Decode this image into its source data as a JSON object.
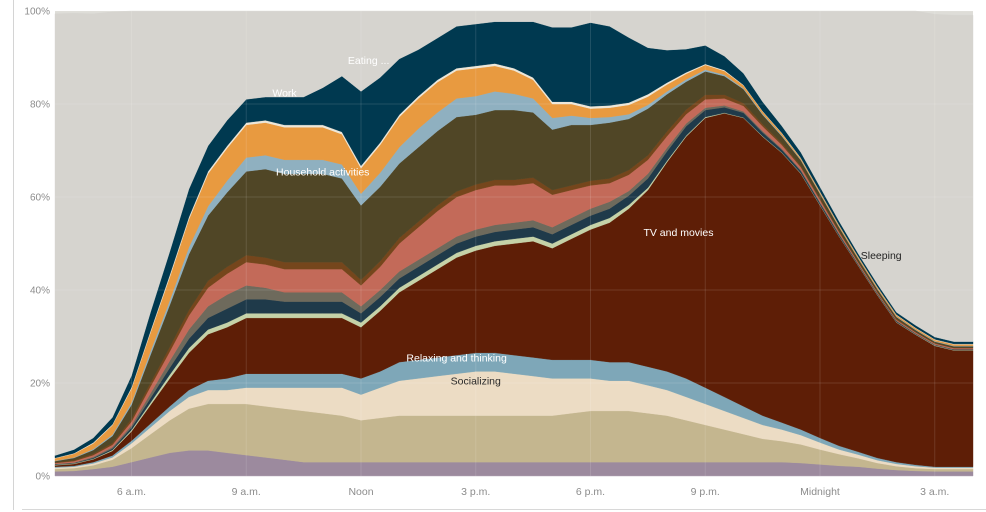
{
  "chart_data": {
    "type": "area",
    "stacked": true,
    "normalized": true,
    "y_ticks": [
      "0%",
      "20%",
      "40%",
      "60%",
      "80%",
      "100%"
    ],
    "ylim": [
      0,
      100
    ],
    "x_ticks": [
      "6 a.m.",
      "9 a.m.",
      "Noon",
      "3 p.m.",
      "6 p.m.",
      "9 p.m.",
      "Midnight",
      "3 a.m."
    ],
    "x": [
      4,
      4.5,
      5,
      5.5,
      6,
      6.5,
      7,
      7.5,
      8,
      8.5,
      9,
      9.5,
      10,
      10.5,
      11,
      11.5,
      12,
      12.5,
      13,
      13.5,
      14,
      14.5,
      15,
      15.5,
      16,
      16.5,
      17,
      17.5,
      18,
      18.5,
      19,
      19.5,
      20,
      20.5,
      21,
      21.5,
      22,
      22.5,
      23,
      23.5,
      24,
      24.5,
      25,
      25.5,
      26,
      26.5,
      27,
      27.5,
      28
    ],
    "grid": true,
    "colors": [
      "#9c8a9e",
      "#c4b68f",
      "#ecdcc4",
      "#7ea7b8",
      "#5e1e06",
      "#c5d2a8",
      "#1f3a4a",
      "#6e6a5c",
      "#c36a59",
      "#75461c",
      "#504626",
      "#8fb0c0",
      "#e89a40",
      "#ede7d9",
      "#003950",
      "#d6d4cf"
    ],
    "series": [
      {
        "name": "",
        "values": [
          1.0,
          1.1,
          1.5,
          2,
          3,
          4,
          5,
          5.5,
          5.5,
          5,
          4.5,
          4,
          3.5,
          3,
          3,
          3,
          3,
          3,
          3,
          3,
          3,
          3,
          3,
          3,
          3,
          3,
          3,
          3,
          3,
          3,
          3,
          3,
          3,
          3,
          3,
          3,
          3,
          3,
          3,
          2.8,
          2.5,
          2.2,
          2,
          1.6,
          1.3,
          1.1,
          1.0,
          1.0,
          1.0
        ]
      },
      {
        "name": "",
        "values": [
          0.5,
          0.6,
          0.8,
          1.5,
          3,
          5,
          7,
          9,
          10,
          10.5,
          11,
          11,
          11,
          11,
          10.5,
          10,
          9,
          9.5,
          10,
          10,
          10,
          10,
          10,
          10,
          10,
          10,
          10,
          10.5,
          11,
          11,
          11,
          10.5,
          10,
          9,
          8,
          7,
          6,
          5,
          4.5,
          4,
          3.2,
          2.5,
          1.8,
          1.2,
          0.8,
          0.6,
          0.5,
          0.5,
          0.5
        ]
      },
      {
        "name": "Socializing",
        "values": [
          0.3,
          0.3,
          0.4,
          0.5,
          1,
          1.5,
          2,
          2.5,
          3,
          3,
          3.5,
          4,
          4.5,
          5,
          5.5,
          6,
          5.5,
          6.5,
          7.5,
          8,
          8.5,
          9,
          9.5,
          9.5,
          9,
          8.5,
          8,
          7.5,
          7,
          6.5,
          6.5,
          6,
          5.5,
          5,
          4.5,
          4,
          3.5,
          3,
          2.5,
          2,
          1.5,
          1,
          0.8,
          0.6,
          0.5,
          0.4,
          0.3,
          0.3,
          0.3
        ]
      },
      {
        "name": "Relaxing and thinking",
        "values": [
          0.2,
          0.2,
          0.3,
          0.4,
          0.6,
          0.8,
          1,
          1.5,
          2,
          2.5,
          3,
          3,
          3,
          3,
          3,
          3,
          3.5,
          3.5,
          4,
          4,
          4,
          4,
          4,
          4,
          4,
          4,
          4,
          4,
          4,
          4,
          4,
          4,
          4,
          4,
          3.5,
          3,
          2.5,
          2,
          1.5,
          1.2,
          1,
          0.8,
          0.6,
          0.5,
          0.4,
          0.3,
          0.2,
          0.2,
          0.2
        ]
      },
      {
        "name": "TV and movies",
        "values": [
          0.3,
          0.4,
          0.6,
          1,
          2,
          4,
          6,
          8,
          10,
          11,
          12,
          12,
          12,
          12,
          12,
          12,
          11,
          13,
          15,
          17,
          19,
          21,
          22,
          23,
          24,
          25,
          24,
          26,
          28,
          30,
          33,
          38,
          45,
          52,
          58,
          61,
          62,
          60,
          58,
          55,
          50,
          45,
          40,
          35,
          30,
          28,
          26,
          25,
          25
        ]
      },
      {
        "name": "",
        "values": [
          0.1,
          0.1,
          0.1,
          0.2,
          0.3,
          0.5,
          0.8,
          1,
          1,
          1,
          1,
          1,
          1,
          1,
          1,
          1,
          1,
          1,
          1,
          1,
          1,
          1,
          1,
          1,
          1,
          1,
          1,
          1,
          1,
          1,
          0.8,
          0.5,
          0.3,
          0.2,
          0.2,
          0.1,
          0.1,
          0.1,
          0.1,
          0.1,
          0.1,
          0.1,
          0.1,
          0.1,
          0.1,
          0.1,
          0.1,
          0.1,
          0.1
        ]
      },
      {
        "name": "",
        "values": [
          0.1,
          0.1,
          0.2,
          0.3,
          0.5,
          1,
          1.5,
          2,
          2.5,
          3,
          3,
          3,
          2.5,
          2.5,
          2.5,
          2.5,
          2,
          2,
          2,
          2,
          2,
          2,
          2,
          2,
          2,
          2,
          2,
          2,
          2,
          2,
          2,
          2,
          2,
          2,
          1.5,
          1.2,
          1,
          0.8,
          0.6,
          0.5,
          0.4,
          0.3,
          0.2,
          0.2,
          0.2,
          0.1,
          0.1,
          0.1,
          0.1
        ]
      },
      {
        "name": "",
        "values": [
          0.1,
          0.1,
          0.2,
          0.3,
          0.5,
          1,
          1.5,
          2,
          2.5,
          3,
          3,
          2.5,
          2,
          2,
          2,
          2,
          1.5,
          1.5,
          1.5,
          1.5,
          1.5,
          1.5,
          1.5,
          1.5,
          1.5,
          1.5,
          1.5,
          1.5,
          1.5,
          1.5,
          1,
          1,
          0.8,
          0.6,
          0.5,
          0.4,
          0.3,
          0.3,
          0.2,
          0.2,
          0.2,
          0.2,
          0.1,
          0.1,
          0.1,
          0.1,
          0.1,
          0.1,
          0.1
        ]
      },
      {
        "name": "",
        "values": [
          0.2,
          0.3,
          0.4,
          0.5,
          0.8,
          1.5,
          2,
          3,
          4,
          4.5,
          5,
          5,
          5,
          5,
          5,
          5,
          4.5,
          5,
          6,
          7,
          8,
          8.5,
          8.5,
          8.5,
          8,
          8,
          7,
          6,
          5,
          4,
          3.5,
          3,
          2.5,
          2,
          1.8,
          1.5,
          1.2,
          1,
          0.8,
          0.6,
          0.5,
          0.4,
          0.3,
          0.2,
          0.2,
          0.2,
          0.2,
          0.2,
          0.2
        ]
      },
      {
        "name": "",
        "values": [
          0.1,
          0.2,
          0.3,
          0.4,
          0.6,
          0.8,
          1,
          1.2,
          1.5,
          1.5,
          1.5,
          1.5,
          1.5,
          1.5,
          1.5,
          1.5,
          1.2,
          1.2,
          1.2,
          1.2,
          1.2,
          1.2,
          1.2,
          1.2,
          1.2,
          1.2,
          1,
          1,
          1,
          1,
          1,
          1,
          1,
          1,
          1,
          0.8,
          0.6,
          0.5,
          0.4,
          0.3,
          0.3,
          0.2,
          0.2,
          0.2,
          0.2,
          0.1,
          0.1,
          0.1,
          0.1
        ]
      },
      {
        "name": "Household activities",
        "values": [
          0.3,
          0.5,
          0.8,
          1.5,
          3,
          6,
          9,
          12,
          14,
          16,
          18,
          19,
          19,
          19,
          19,
          18,
          16,
          16,
          16,
          16,
          16,
          16,
          15,
          15,
          15,
          14,
          13,
          13,
          12,
          12,
          11,
          10,
          8,
          6,
          5,
          4,
          3,
          2,
          1.5,
          1.2,
          1,
          0.8,
          0.6,
          0.5,
          0.4,
          0.4,
          0.3,
          0.3,
          0.3
        ]
      },
      {
        "name": "",
        "values": [
          0.1,
          0.1,
          0.2,
          0.3,
          0.5,
          0.8,
          1,
          1.5,
          2,
          2.5,
          3,
          3,
          3,
          3,
          3,
          3,
          2.5,
          3,
          3.5,
          4,
          4,
          4,
          4,
          4,
          3.5,
          3,
          2.5,
          2,
          1.5,
          1.2,
          1,
          0.8,
          0.6,
          0.5,
          0.4,
          0.3,
          0.2,
          0.2,
          0.2,
          0.1,
          0.1,
          0.1,
          0.1,
          0.1,
          0.1,
          0.1,
          0.1,
          0.1,
          0.1
        ]
      },
      {
        "name": "Work",
        "values": [
          0.5,
          0.8,
          1.2,
          2,
          3,
          4,
          5,
          6,
          7,
          7,
          7,
          7,
          7,
          7,
          7,
          6.5,
          5.5,
          6,
          6.5,
          6.5,
          6.5,
          6,
          6,
          5.5,
          5,
          4,
          3,
          2.5,
          2,
          2,
          2,
          1.8,
          1.5,
          1.2,
          1,
          0.8,
          0.6,
          0.5,
          0.4,
          0.3,
          0.3,
          0.3,
          0.3,
          0.3,
          0.3,
          0.3,
          0.3,
          0.3,
          0.3
        ]
      },
      {
        "name": "",
        "values": [
          0.1,
          0.1,
          0.2,
          0.2,
          0.3,
          0.4,
          0.5,
          0.5,
          0.5,
          0.5,
          0.5,
          0.5,
          0.5,
          0.5,
          0.5,
          0.5,
          0.5,
          0.5,
          0.5,
          0.5,
          0.5,
          0.5,
          0.5,
          0.5,
          0.5,
          0.5,
          0.5,
          0.5,
          0.5,
          0.5,
          0.5,
          0.5,
          0.4,
          0.3,
          0.2,
          0.2,
          0.1,
          0.1,
          0.1,
          0.1,
          0.1,
          0.1,
          0.1,
          0.1,
          0.1,
          0.1,
          0.1,
          0.1,
          0.1
        ]
      },
      {
        "name": "Eating ...",
        "values": [
          0.5,
          0.8,
          1,
          1.5,
          2.5,
          4,
          5,
          6,
          5.5,
          5.5,
          5,
          5,
          6,
          6,
          8,
          12,
          16,
          14,
          12,
          10,
          9,
          9,
          9,
          9,
          10,
          12,
          16,
          16,
          18,
          17,
          14,
          10,
          7,
          5,
          4,
          3,
          2.5,
          2,
          1.5,
          1.2,
          1,
          0.8,
          0.6,
          0.6,
          0.5,
          0.5,
          0.5,
          0.5,
          0.5
        ]
      },
      {
        "name": "Sleeping",
        "values": [
          95.0,
          93.8,
          91.2,
          87.2,
          79.2,
          66.3,
          53.2,
          40,
          31.5,
          28.7,
          26.5,
          26.5,
          27.5,
          27.5,
          25.5,
          23.5,
          23.3,
          23.8,
          21.3,
          17.6,
          15.3,
          14.8,
          14.3,
          13.9,
          13.1,
          12.9,
          13.4,
          12.3,
          10.5,
          8.3,
          7.7,
          8.7,
          9.4,
          11.3,
          12.2,
          13.8,
          16.4,
          21.4,
          26.5,
          32.6,
          39.0,
          45.2,
          52.6,
          59.3,
          65.1,
          67.6,
          69.4,
          70.2,
          70.2
        ]
      }
    ]
  }
}
